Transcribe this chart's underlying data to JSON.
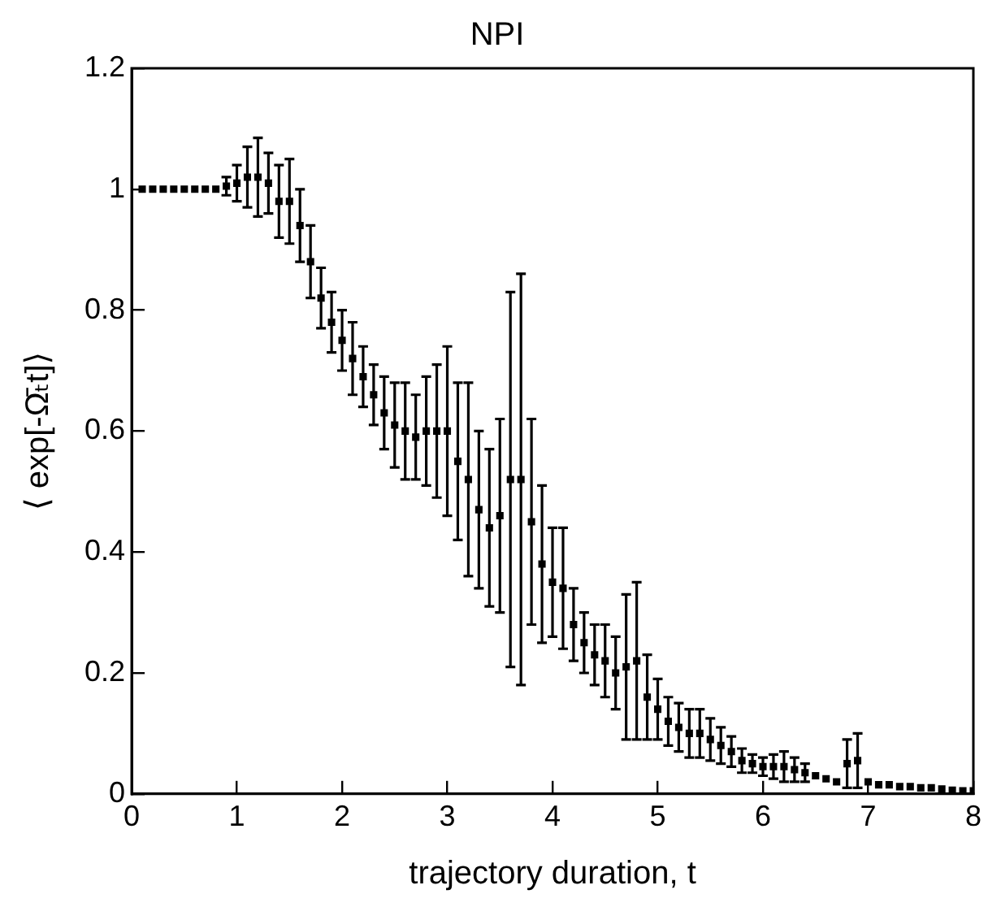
{
  "chart_data": {
    "type": "scatter",
    "title": "NPI",
    "xlabel": "trajectory duration, t",
    "ylabel": "⟨ exp[-Ω̄ₜt]⟩",
    "xlim": [
      0,
      8
    ],
    "xticks": [
      0,
      1,
      2,
      3,
      4,
      5,
      6,
      7,
      8
    ],
    "ylim": [
      0,
      1.2
    ],
    "yticks": [
      0,
      0.2,
      0.4,
      0.6,
      0.8,
      1,
      1.2
    ],
    "grid": false,
    "legend": false,
    "marker": "square",
    "series": [
      {
        "color": "#000000",
        "x": [
          0.1,
          0.2,
          0.3,
          0.4,
          0.5,
          0.6,
          0.7,
          0.8,
          0.9,
          1.0,
          1.1,
          1.2,
          1.3,
          1.4,
          1.5,
          1.6,
          1.7,
          1.8,
          1.9,
          2.0,
          2.1,
          2.2,
          2.3,
          2.4,
          2.5,
          2.6,
          2.7,
          2.8,
          2.9,
          3.0,
          3.1,
          3.2,
          3.3,
          3.4,
          3.5,
          3.6,
          3.7,
          3.8,
          3.9,
          4.0,
          4.1,
          4.2,
          4.3,
          4.4,
          4.5,
          4.6,
          4.7,
          4.8,
          4.9,
          5.0,
          5.1,
          5.2,
          5.3,
          5.4,
          5.5,
          5.6,
          5.7,
          5.8,
          5.9,
          6.0,
          6.1,
          6.2,
          6.3,
          6.4,
          6.5,
          6.6,
          6.7,
          6.8,
          6.9,
          7.0,
          7.1,
          7.2,
          7.3,
          7.4,
          7.5,
          7.6,
          7.7,
          7.8,
          7.9,
          8.0
        ],
        "values": [
          1.0,
          1.0,
          1.0,
          1.0,
          1.0,
          1.0,
          1.0,
          1.0,
          1.005,
          1.01,
          1.02,
          1.02,
          1.01,
          0.98,
          0.98,
          0.94,
          0.88,
          0.82,
          0.78,
          0.75,
          0.72,
          0.69,
          0.66,
          0.63,
          0.61,
          0.6,
          0.59,
          0.6,
          0.6,
          0.6,
          0.55,
          0.52,
          0.47,
          0.44,
          0.46,
          0.52,
          0.52,
          0.45,
          0.38,
          0.35,
          0.34,
          0.28,
          0.25,
          0.23,
          0.22,
          0.2,
          0.21,
          0.22,
          0.16,
          0.14,
          0.12,
          0.11,
          0.1,
          0.1,
          0.09,
          0.08,
          0.07,
          0.055,
          0.05,
          0.045,
          0.045,
          0.045,
          0.04,
          0.035,
          0.03,
          0.025,
          0.02,
          0.05,
          0.055,
          0.02,
          0.015,
          0.015,
          0.012,
          0.012,
          0.01,
          0.01,
          0.008,
          0.006,
          0.005,
          0.005
        ],
        "errors": [
          null,
          null,
          null,
          null,
          null,
          null,
          null,
          null,
          0.015,
          0.03,
          0.05,
          0.065,
          0.05,
          0.06,
          0.07,
          0.06,
          0.06,
          0.05,
          0.05,
          0.05,
          0.06,
          0.05,
          0.05,
          0.06,
          0.07,
          0.08,
          0.07,
          0.09,
          0.11,
          0.14,
          0.13,
          0.16,
          0.13,
          0.13,
          0.16,
          0.31,
          0.34,
          0.17,
          0.13,
          0.09,
          0.1,
          0.06,
          0.05,
          0.05,
          0.06,
          0.06,
          0.12,
          0.13,
          0.07,
          0.05,
          0.04,
          0.04,
          0.04,
          0.04,
          0.035,
          0.03,
          0.025,
          0.02,
          0.015,
          0.015,
          0.02,
          0.025,
          0.02,
          0.015,
          null,
          null,
          null,
          0.04,
          0.045,
          null,
          null,
          null,
          null,
          null,
          null,
          null,
          null,
          null,
          null,
          null
        ]
      }
    ]
  }
}
